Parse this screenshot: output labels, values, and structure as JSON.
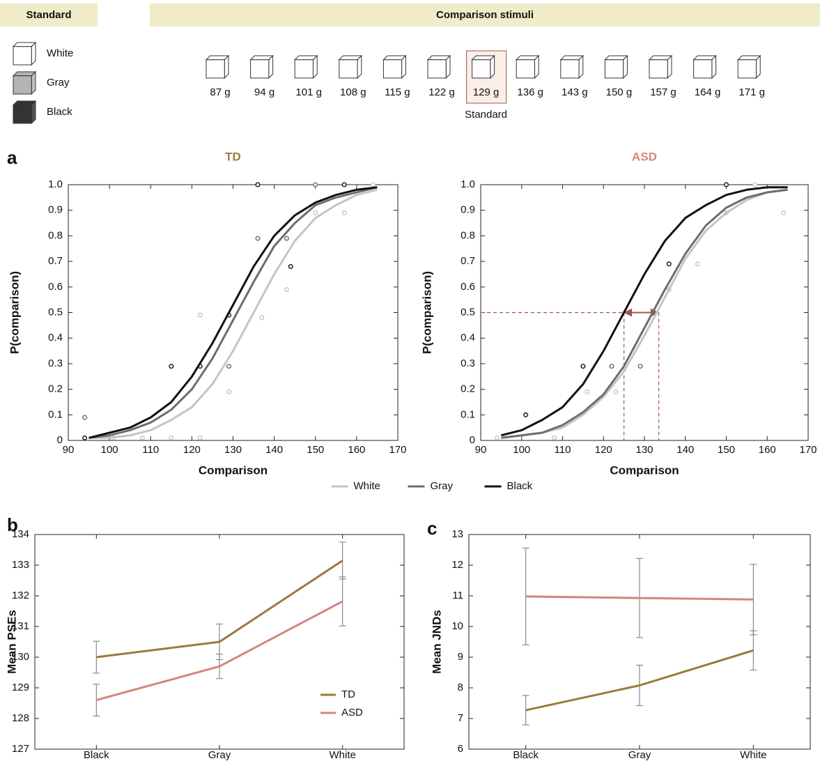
{
  "header": {
    "standard_title": "Standard",
    "comparison_title": "Comparison stimuli",
    "legend": [
      {
        "label": "White",
        "fill": "#ffffff"
      },
      {
        "label": "Gray",
        "fill": "#b4b4b4"
      },
      {
        "label": "Black",
        "fill": "#333333"
      }
    ],
    "stimuli": [
      {
        "label": "87 g"
      },
      {
        "label": "94 g"
      },
      {
        "label": "101 g"
      },
      {
        "label": "108 g"
      },
      {
        "label": "115 g"
      },
      {
        "label": "122 g"
      },
      {
        "label": "129 g",
        "note": "Standard"
      },
      {
        "label": "136 g"
      },
      {
        "label": "143 g"
      },
      {
        "label": "150 g"
      },
      {
        "label": "157 g"
      },
      {
        "label": "164 g"
      },
      {
        "label": "171 g"
      }
    ]
  },
  "chart_data": [
    {
      "type": "psychometric",
      "panel": "a",
      "title": "TD",
      "title_color": "#9b7a3a",
      "xlabel": "Comparison",
      "ylabel": "P(comparison)",
      "xlim": [
        90,
        170
      ],
      "xticks": [
        90,
        100,
        110,
        120,
        130,
        140,
        150,
        160,
        170
      ],
      "ylim": [
        0,
        1
      ],
      "yticks": [
        0,
        0.1,
        0.2,
        0.3,
        0.4,
        0.5,
        0.6,
        0.7,
        0.8,
        0.9,
        {
          "value": 1,
          "label": "1.0"
        }
      ],
      "legend": "bottom-center",
      "series": [
        {
          "name": "White",
          "color": "#c4c4c4",
          "x": [
            95,
            100,
            105,
            110,
            115,
            120,
            125,
            130,
            135,
            140,
            145,
            150,
            155,
            160,
            165
          ],
          "values": [
            0.01,
            0.01,
            0.02,
            0.04,
            0.08,
            0.13,
            0.22,
            0.35,
            0.5,
            0.65,
            0.78,
            0.87,
            0.92,
            0.96,
            0.98
          ],
          "points_x": [
            101,
            108,
            115,
            122,
            122,
            129,
            137,
            143,
            150,
            157,
            164
          ],
          "points_y": [
            0.01,
            0.01,
            0.01,
            0.49,
            0.01,
            0.19,
            0.48,
            0.59,
            0.89,
            0.89,
            1.0
          ]
        },
        {
          "name": "Gray",
          "color": "#6d6d6d",
          "x": [
            95,
            100,
            105,
            110,
            115,
            120,
            125,
            130,
            135,
            140,
            145,
            150,
            155,
            160,
            165
          ],
          "values": [
            0.01,
            0.02,
            0.04,
            0.07,
            0.12,
            0.2,
            0.32,
            0.47,
            0.62,
            0.76,
            0.85,
            0.92,
            0.95,
            0.97,
            0.99
          ],
          "points_x": [
            94,
            129,
            136,
            143,
            150
          ],
          "points_y": [
            0.09,
            0.29,
            0.79,
            0.79,
            1.0
          ]
        },
        {
          "name": "Black",
          "color": "#111111",
          "x": [
            95,
            100,
            105,
            110,
            115,
            120,
            125,
            130,
            135,
            140,
            145,
            150,
            155,
            160,
            165
          ],
          "values": [
            0.01,
            0.03,
            0.05,
            0.09,
            0.15,
            0.25,
            0.38,
            0.53,
            0.68,
            0.8,
            0.88,
            0.93,
            0.96,
            0.98,
            0.99
          ],
          "points_x": [
            94,
            115,
            122,
            129,
            136,
            144,
            157
          ],
          "points_y": [
            0.01,
            0.29,
            0.29,
            0.49,
            1.0,
            0.68,
            1.0
          ]
        }
      ]
    },
    {
      "type": "psychometric",
      "title": "ASD",
      "title_color": "#d4857d",
      "xlabel": "Comparison",
      "ylabel": "P(comparison)",
      "xlim": [
        90,
        170
      ],
      "xticks": [
        90,
        100,
        110,
        120,
        130,
        140,
        150,
        160,
        170
      ],
      "ylim": [
        0,
        1
      ],
      "yticks": [
        0,
        0.1,
        0.2,
        0.3,
        0.4,
        0.5,
        0.6,
        0.7,
        0.8,
        0.9,
        {
          "value": 1,
          "label": "1.0"
        }
      ],
      "guide": {
        "y": 0.5,
        "x": [
          125,
          133.5
        ],
        "color": "#a0554a"
      },
      "series": [
        {
          "color": "#c4c4c4",
          "x": [
            95,
            100,
            105,
            110,
            115,
            120,
            125,
            130,
            135,
            140,
            145,
            150,
            155,
            160,
            165
          ],
          "values": [
            0.01,
            0.02,
            0.03,
            0.05,
            0.1,
            0.17,
            0.27,
            0.41,
            0.56,
            0.71,
            0.82,
            0.89,
            0.94,
            0.97,
            0.98
          ],
          "points_x": [
            94,
            108,
            116,
            123,
            136,
            143,
            150,
            157,
            164
          ],
          "points_y": [
            0.01,
            0.01,
            0.19,
            0.19,
            0.59,
            0.69,
            0.89,
            1.0,
            0.89
          ]
        },
        {
          "color": "#6d6d6d",
          "x": [
            95,
            100,
            105,
            110,
            115,
            120,
            125,
            130,
            135,
            140,
            145,
            150,
            155,
            160,
            165
          ],
          "values": [
            0.01,
            0.02,
            0.03,
            0.06,
            0.11,
            0.18,
            0.29,
            0.44,
            0.59,
            0.73,
            0.84,
            0.91,
            0.95,
            0.97,
            0.98
          ],
          "points_x": [
            122,
            129
          ],
          "points_y": [
            0.29,
            0.29
          ]
        },
        {
          "color": "#111111",
          "x": [
            95,
            100,
            105,
            110,
            115,
            120,
            125,
            130,
            135,
            140,
            145,
            150,
            155,
            160,
            165
          ],
          "values": [
            0.02,
            0.04,
            0.08,
            0.13,
            0.22,
            0.35,
            0.5,
            0.65,
            0.78,
            0.87,
            0.92,
            0.96,
            0.98,
            0.99,
            0.99
          ],
          "points_x": [
            101,
            115,
            136,
            150
          ],
          "points_y": [
            0.1,
            0.29,
            0.69,
            1.0
          ]
        }
      ]
    },
    {
      "type": "line",
      "panel": "b",
      "ylabel": "Mean PSEs",
      "categories": [
        "Black",
        "Gray",
        "White"
      ],
      "ylim": [
        127,
        134
      ],
      "yticks": [
        127,
        128,
        129,
        130,
        131,
        132,
        133,
        134
      ],
      "legend": "lower-right",
      "error_color": "#8a8a8a",
      "series": [
        {
          "name": "TD",
          "color": "#9b7a3a",
          "values": [
            130.0,
            130.5,
            133.15
          ],
          "errors": [
            0.52,
            0.58,
            0.6
          ]
        },
        {
          "name": "ASD",
          "color": "#d4857d",
          "values": [
            128.6,
            129.7,
            131.82
          ],
          "errors": [
            0.52,
            0.4,
            0.8
          ]
        }
      ]
    },
    {
      "type": "line",
      "panel": "c",
      "ylabel": "Mean JNDs",
      "categories": [
        "Black",
        "Gray",
        "White"
      ],
      "ylim": [
        6,
        13
      ],
      "yticks": [
        6,
        7,
        8,
        9,
        10,
        11,
        12,
        13
      ],
      "error_color": "#8a8a8a",
      "series": [
        {
          "color": "#9b7a3a",
          "values": [
            7.27,
            8.08,
            9.22
          ],
          "errors": [
            0.48,
            0.66,
            0.64
          ]
        },
        {
          "color": "#d4857d",
          "values": [
            10.98,
            10.93,
            10.88
          ],
          "errors": [
            1.58,
            1.29,
            1.15
          ]
        }
      ]
    }
  ]
}
